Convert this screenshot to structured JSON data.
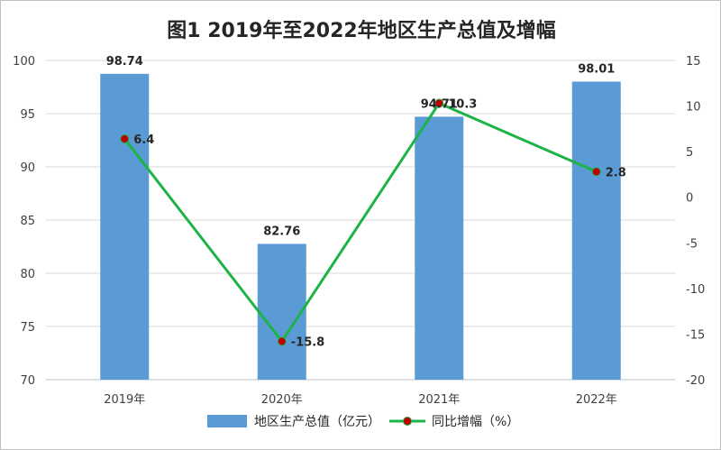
{
  "chart_data": {
    "type": "bar",
    "title": "图1 2019年至2022年地区生产总值及增幅",
    "categories": [
      "2019年",
      "2020年",
      "2021年",
      "2022年"
    ],
    "series": [
      {
        "name": "地区生产总值（亿元）",
        "type": "bar",
        "axis": "left",
        "color": "#5b9bd5",
        "values": [
          98.74,
          82.76,
          94.71,
          98.01
        ],
        "labels": [
          "98.74",
          "82.76",
          "94.71",
          "98.01"
        ]
      },
      {
        "name": "同比增幅（%）",
        "type": "line",
        "axis": "right",
        "color": "#1db346",
        "marker_color": "#c00000",
        "values": [
          6.4,
          -15.8,
          10.3,
          2.8
        ],
        "labels": [
          "6.4",
          "-15.8",
          "10.3",
          "2.8"
        ]
      }
    ],
    "y_left": {
      "min": 70,
      "max": 100,
      "ticks": [
        "70",
        "75",
        "80",
        "85",
        "90",
        "95",
        "100"
      ]
    },
    "y_right": {
      "min": -20,
      "max": 15,
      "ticks": [
        "-20",
        "-15",
        "-10",
        "-5",
        "0",
        "5",
        "10",
        "15"
      ]
    },
    "grid": true,
    "legend_position": "bottom"
  }
}
